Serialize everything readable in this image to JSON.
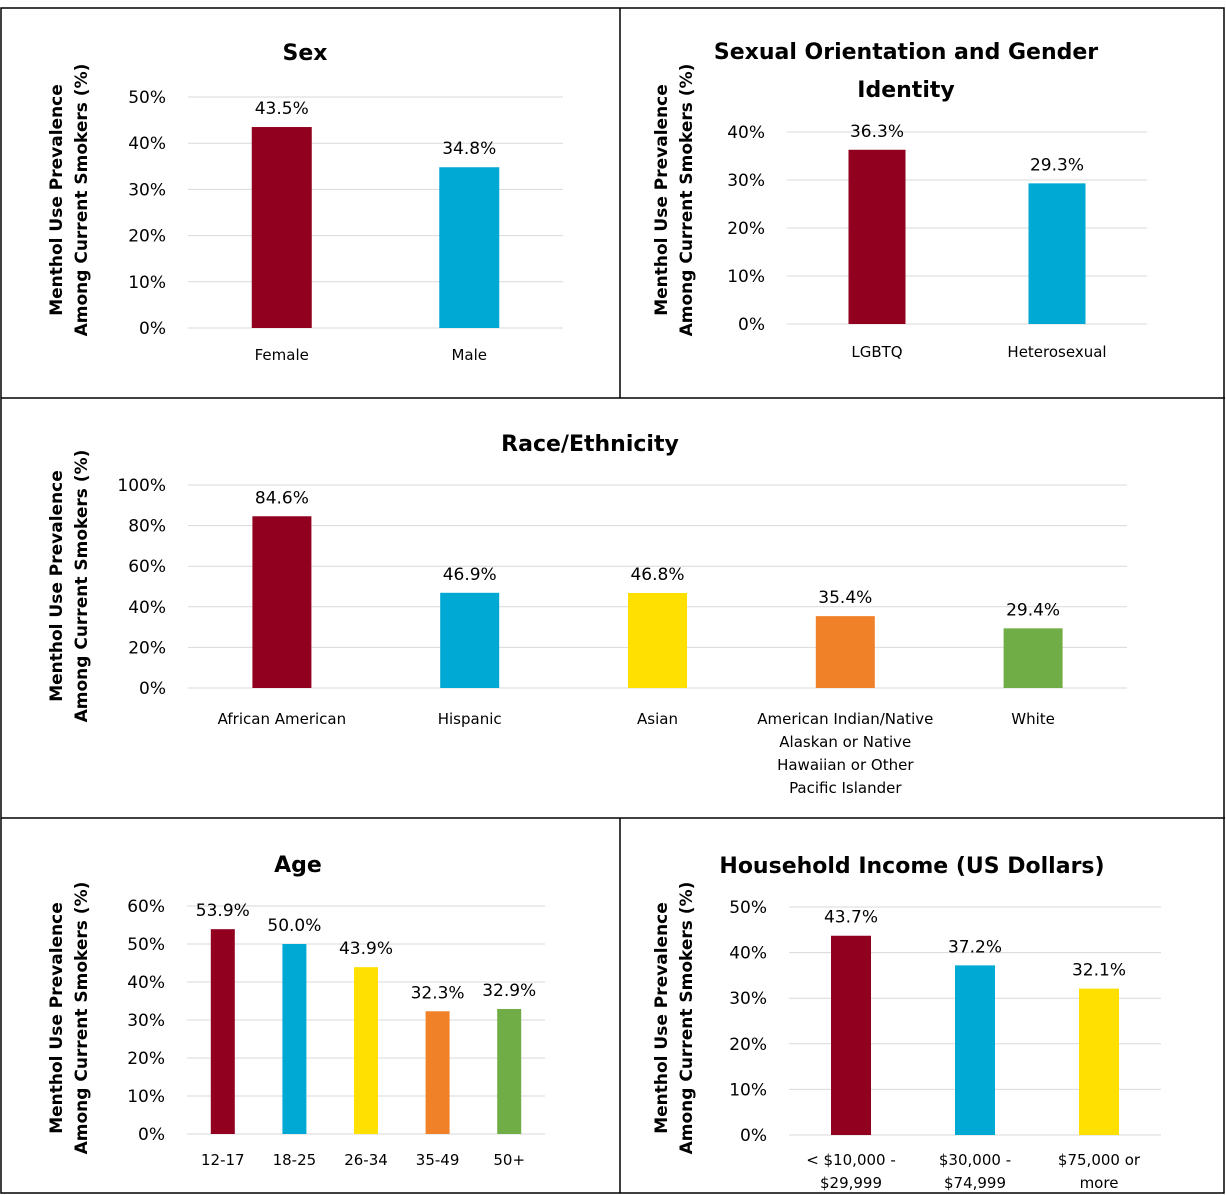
{
  "colors": {
    "crimson": "#92001f",
    "cyan": "#00a8d4",
    "yellow": "#ffe000",
    "orange": "#f08129",
    "green": "#70ad47",
    "grid": "#d9d9d9",
    "border": "#000000"
  },
  "chart_data": [
    {
      "id": "sex",
      "type": "bar",
      "title": [
        "Sex"
      ],
      "ylabel": [
        "Menthol Use Prevalence",
        "Among Current Smokers (%)"
      ],
      "ylim": [
        0,
        50
      ],
      "yticks": [
        0,
        10,
        20,
        30,
        40,
        50
      ],
      "ytick_labels": [
        "0%",
        "10%",
        "20%",
        "30%",
        "40%",
        "50%"
      ],
      "categories": [
        [
          "Female"
        ],
        [
          "Male"
        ]
      ],
      "values": [
        43.5,
        34.8
      ],
      "data_labels": [
        "43.5%",
        "34.8%"
      ],
      "bar_colors": [
        "#92001f",
        "#00a8d4"
      ],
      "grid": true
    },
    {
      "id": "sogi",
      "type": "bar",
      "title": [
        "Sexual Orientation and Gender",
        "Identity"
      ],
      "ylabel": [
        "Menthol Use Prevalence",
        "Among Current Smokers (%)"
      ],
      "ylim": [
        0,
        40
      ],
      "yticks": [
        0,
        10,
        20,
        30,
        40
      ],
      "ytick_labels": [
        "0%",
        "10%",
        "20%",
        "30%",
        "40%"
      ],
      "categories": [
        [
          "LGBTQ"
        ],
        [
          "Heterosexual"
        ]
      ],
      "values": [
        36.3,
        29.3
      ],
      "data_labels": [
        "36.3%",
        "29.3%"
      ],
      "bar_colors": [
        "#92001f",
        "#00a8d4"
      ],
      "grid": true
    },
    {
      "id": "race",
      "type": "bar",
      "title": [
        "Race/Ethnicity"
      ],
      "ylabel": [
        "Menthol Use Prevalence",
        "Among Current Smokers (%)"
      ],
      "ylim": [
        0,
        100
      ],
      "yticks": [
        0,
        20,
        40,
        60,
        80,
        100
      ],
      "ytick_labels": [
        "0%",
        "20%",
        "40%",
        "60%",
        "80%",
        "100%"
      ],
      "categories": [
        [
          "African American"
        ],
        [
          "Hispanic"
        ],
        [
          "Asian"
        ],
        [
          "American Indian/Native",
          "Alaskan or Native",
          "Hawaiian or Other",
          "Pacific Islander"
        ],
        [
          "White"
        ]
      ],
      "values": [
        84.6,
        46.9,
        46.8,
        35.4,
        29.4
      ],
      "data_labels": [
        "84.6%",
        "46.9%",
        "46.8%",
        "35.4%",
        "29.4%"
      ],
      "bar_colors": [
        "#92001f",
        "#00a8d4",
        "#ffe000",
        "#f08129",
        "#70ad47"
      ],
      "grid": true
    },
    {
      "id": "age",
      "type": "bar",
      "title": [
        "Age"
      ],
      "ylabel": [
        "Menthol Use Prevalence",
        "Among Current Smokers (%)"
      ],
      "ylim": [
        0,
        60
      ],
      "yticks": [
        0,
        10,
        20,
        30,
        40,
        50,
        60
      ],
      "ytick_labels": [
        "0%",
        "10%",
        "20%",
        "30%",
        "40%",
        "50%",
        "60%"
      ],
      "categories": [
        [
          "12-17"
        ],
        [
          "18-25"
        ],
        [
          "26-34"
        ],
        [
          "35-49"
        ],
        [
          "50+"
        ]
      ],
      "values": [
        53.9,
        50.0,
        43.9,
        32.3,
        32.9
      ],
      "data_labels": [
        "53.9%",
        "50.0%",
        "43.9%",
        "32.3%",
        "32.9%"
      ],
      "bar_colors": [
        "#92001f",
        "#00a8d4",
        "#ffe000",
        "#f08129",
        "#70ad47"
      ],
      "grid": true
    },
    {
      "id": "income",
      "type": "bar",
      "title": [
        "Household Income (US Dollars)"
      ],
      "ylabel": [
        "Menthol Use Prevalence",
        "Among Current Smokers (%)"
      ],
      "ylim": [
        0,
        50
      ],
      "yticks": [
        0,
        10,
        20,
        30,
        40,
        50
      ],
      "ytick_labels": [
        "0%",
        "10%",
        "20%",
        "30%",
        "40%",
        "50%"
      ],
      "categories": [
        [
          "< $10,000 -",
          "$29,999"
        ],
        [
          "$30,000 -",
          "$74,999"
        ],
        [
          "$75,000 or",
          "more"
        ]
      ],
      "values": [
        43.7,
        37.2,
        32.1
      ],
      "data_labels": [
        "43.7%",
        "37.2%",
        "32.1%"
      ],
      "bar_colors": [
        "#92001f",
        "#00a8d4",
        "#ffe000"
      ],
      "grid": true
    }
  ]
}
